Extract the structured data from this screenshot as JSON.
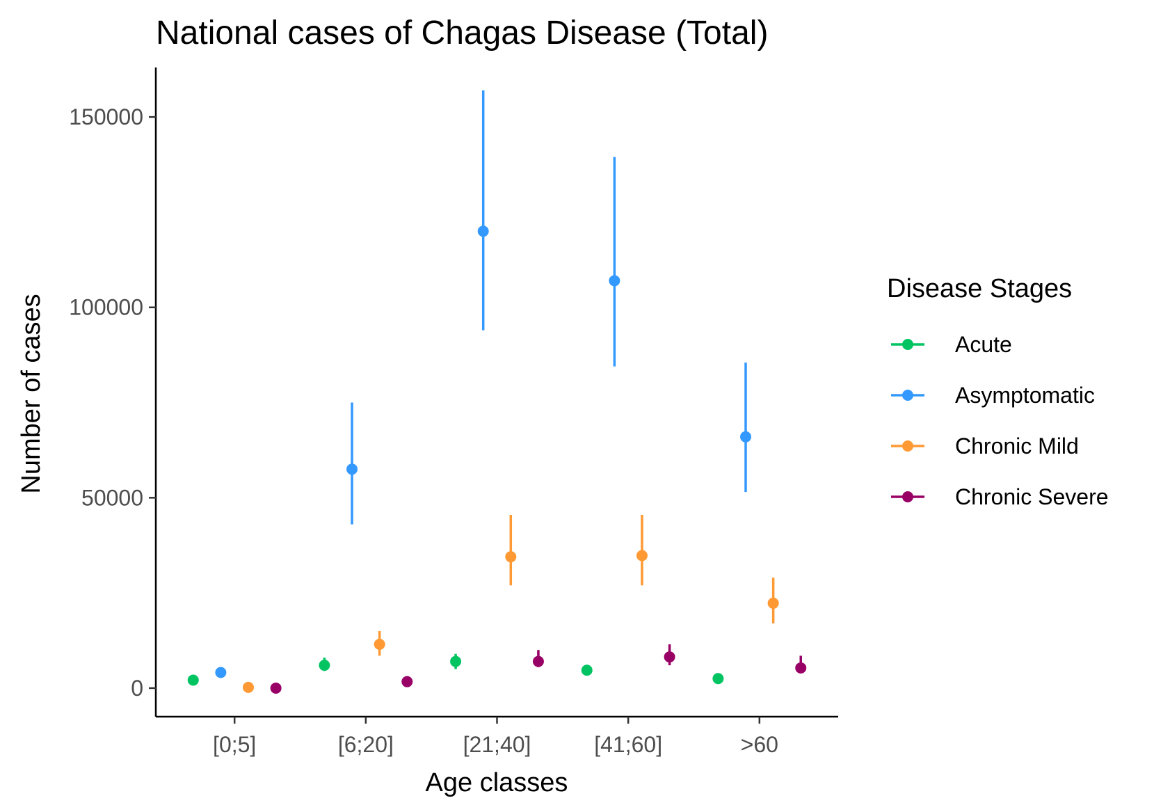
{
  "chart_data": {
    "type": "scatter",
    "title": "National cases of Chagas Disease (Total)",
    "xlabel": "Age classes",
    "ylabel": "Number of cases",
    "categories": [
      "[0;5]",
      "[6;20]",
      "[21;40]",
      "[41;60]",
      ">60"
    ],
    "yticks": [
      "0",
      "50000",
      "100000",
      "150000"
    ],
    "ytick_values": [
      0,
      50000,
      100000,
      150000
    ],
    "ylim": [
      -7500,
      163000
    ],
    "grid": false,
    "legend": {
      "title": "Disease Stages",
      "placement": "right"
    },
    "series": [
      {
        "name": "Acute",
        "color": "#00C462",
        "values": [
          2100,
          6000,
          7000,
          4700,
          2500
        ],
        "lower": [
          2100,
          4500,
          5000,
          4700,
          2500
        ],
        "upper": [
          2100,
          8000,
          9000,
          4700,
          2500
        ]
      },
      {
        "name": "Asymptomatic",
        "color": "#3399FF",
        "values": [
          4100,
          57500,
          120000,
          107000,
          66000
        ],
        "lower": [
          4100,
          43000,
          94000,
          84500,
          51500
        ],
        "upper": [
          4100,
          75000,
          157000,
          139500,
          85500
        ]
      },
      {
        "name": "Chronic Mild",
        "color": "#FF9933",
        "values": [
          200,
          11500,
          34500,
          34800,
          22300
        ],
        "lower": [
          200,
          8500,
          27000,
          27000,
          17000
        ],
        "upper": [
          200,
          15000,
          45500,
          45500,
          29000
        ]
      },
      {
        "name": "Chronic Severe",
        "color": "#990066",
        "values": [
          0,
          1700,
          7000,
          8200,
          5300
        ],
        "lower": [
          0,
          1700,
          5500,
          6000,
          4200
        ],
        "upper": [
          0,
          1700,
          10000,
          11500,
          8500
        ]
      }
    ]
  }
}
